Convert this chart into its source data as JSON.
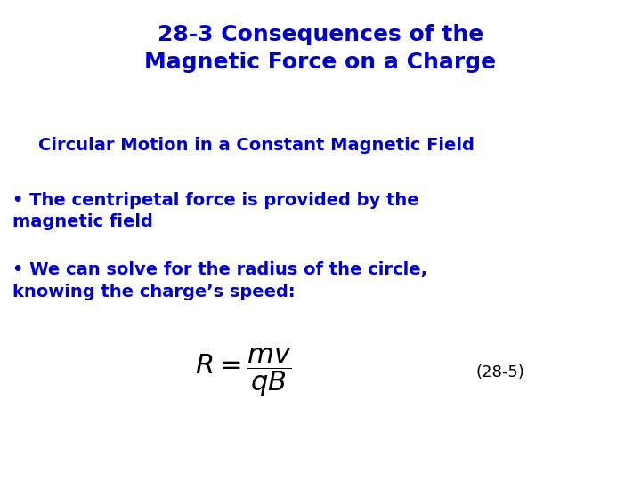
{
  "background_color": "#ffffff",
  "title_line1": "28-3 Consequences of the",
  "title_line2": "Magnetic Force on a Charge",
  "title_color": "#0000cc",
  "title_fontsize": 18,
  "subtitle": "Circular Motion in a Constant Magnetic Field",
  "subtitle_color": "#0000cc",
  "subtitle_fontsize": 14,
  "bullet1_line1": "• The centripetal force is provided by the",
  "bullet1_line2": "magnetic field",
  "bullet2_line1": "• We can solve for the radius of the circle,",
  "bullet2_line2": "knowing the charge’s speed:",
  "bullet_color": "#0000cc",
  "bullet_fontsize": 14,
  "equation_label": "(28-5)",
  "equation_color": "#000000",
  "equation_fontsize": 16,
  "label_fontsize": 13
}
